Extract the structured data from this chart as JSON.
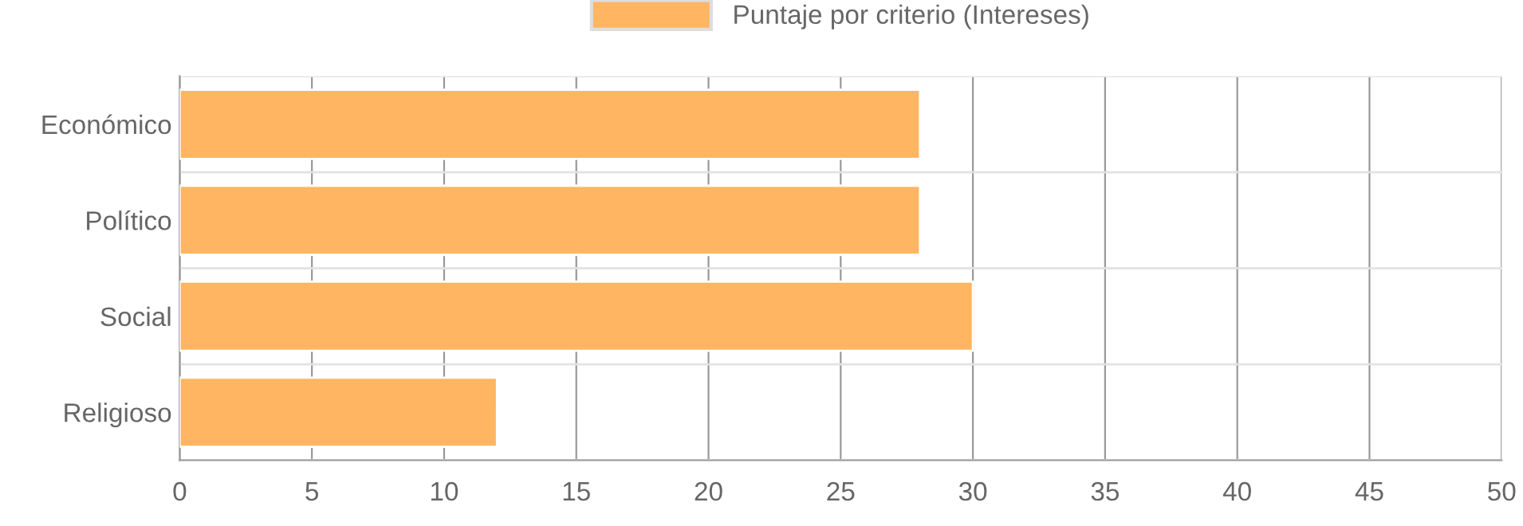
{
  "chart_data": {
    "type": "bar",
    "orientation": "horizontal",
    "categories": [
      "Económico",
      "Político",
      "Social",
      "Religioso"
    ],
    "series": [
      {
        "name": "Puntaje por criterio (Intereses)",
        "color": "#ffb562",
        "values": [
          28,
          28,
          30,
          12
        ]
      }
    ],
    "xlim": [
      0,
      50
    ],
    "xticks": [
      0,
      5,
      10,
      15,
      20,
      25,
      30,
      35,
      40,
      45,
      50
    ],
    "grid": true,
    "legend": "top"
  }
}
